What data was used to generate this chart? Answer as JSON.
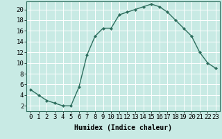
{
  "x": [
    0,
    1,
    2,
    3,
    4,
    5,
    6,
    7,
    8,
    9,
    10,
    11,
    12,
    13,
    14,
    15,
    16,
    17,
    18,
    19,
    20,
    21,
    22,
    23
  ],
  "y": [
    5,
    4,
    3,
    2.5,
    2,
    2,
    5.5,
    11.5,
    15,
    16.5,
    16.5,
    19,
    19.5,
    20,
    20.5,
    21,
    20.5,
    19.5,
    18,
    16.5,
    15,
    12,
    10,
    9
  ],
  "line_color": "#2e6e5e",
  "marker": "D",
  "marker_size": 2,
  "bg_color": "#c8eae4",
  "grid_color": "#ffffff",
  "xlabel": "Humidex (Indice chaleur)",
  "xtick_labels": [
    "0",
    "1",
    "2",
    "3",
    "4",
    "5",
    "6",
    "7",
    "8",
    "9",
    "10",
    "11",
    "12",
    "13",
    "14",
    "15",
    "16",
    "17",
    "18",
    "19",
    "20",
    "21",
    "22",
    "23"
  ],
  "ytick_labels": [
    "2",
    "4",
    "6",
    "8",
    "10",
    "12",
    "14",
    "16",
    "18",
    "20"
  ],
  "yticks": [
    2,
    4,
    6,
    8,
    10,
    12,
    14,
    16,
    18,
    20
  ],
  "xlim": [
    -0.5,
    23.5
  ],
  "ylim": [
    1,
    21.5
  ],
  "xlabel_fontsize": 7,
  "tick_fontsize": 6.5
}
